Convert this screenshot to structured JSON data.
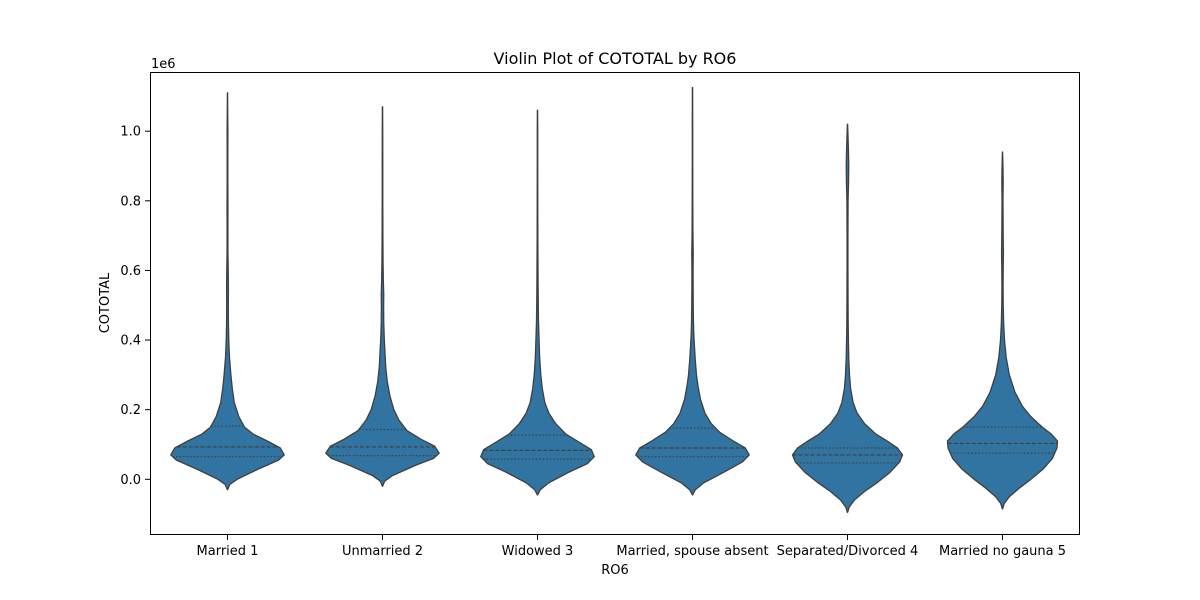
{
  "chart_data": {
    "type": "violin",
    "title": "Violin Plot of COTOTAL by RO6",
    "xlabel": "RO6",
    "ylabel": "COTOTAL",
    "y_offset_label": "1e6",
    "ylim": [
      -0.16,
      1.17
    ],
    "y_ticks": [
      0.0,
      0.2,
      0.4,
      0.6,
      0.8,
      1.0
    ],
    "y_tick_labels": [
      "0.0",
      "0.2",
      "0.4",
      "0.6",
      "0.8",
      "1.0"
    ],
    "grid": false,
    "fill_color": "#3274a1",
    "edge_color": "#3f3f3f",
    "categories": [
      "Married 1",
      "Unmarried 2",
      "Widowed 3",
      "Married, spouse absent",
      "Separated/Divorced 4",
      "Married no gauna 5"
    ],
    "series": [
      {
        "min": -0.03,
        "max": 1.11,
        "q1": 0.065,
        "median": 0.093,
        "q3": 0.153,
        "profile": [
          [
            -0.03,
            0.002
          ],
          [
            -0.015,
            0.04
          ],
          [
            0.0,
            0.17
          ],
          [
            0.03,
            0.55
          ],
          [
            0.055,
            0.9
          ],
          [
            0.07,
            1.0
          ],
          [
            0.09,
            0.93
          ],
          [
            0.11,
            0.7
          ],
          [
            0.13,
            0.45
          ],
          [
            0.15,
            0.3
          ],
          [
            0.18,
            0.2
          ],
          [
            0.22,
            0.12
          ],
          [
            0.26,
            0.085
          ],
          [
            0.3,
            0.06
          ],
          [
            0.35,
            0.035
          ],
          [
            0.4,
            0.022
          ],
          [
            0.45,
            0.016
          ],
          [
            0.5,
            0.014
          ],
          [
            0.55,
            0.016
          ],
          [
            0.6,
            0.013
          ],
          [
            0.65,
            0.008
          ],
          [
            0.7,
            0.007
          ],
          [
            0.78,
            0.008
          ],
          [
            0.85,
            0.006
          ],
          [
            0.95,
            0.006
          ],
          [
            1.0,
            0.007
          ],
          [
            1.05,
            0.004
          ],
          [
            1.11,
            0.002
          ]
        ]
      },
      {
        "min": -0.02,
        "max": 1.07,
        "q1": 0.068,
        "median": 0.093,
        "q3": 0.143,
        "profile": [
          [
            -0.02,
            0.002
          ],
          [
            -0.005,
            0.04
          ],
          [
            0.01,
            0.17
          ],
          [
            0.04,
            0.58
          ],
          [
            0.06,
            0.9
          ],
          [
            0.075,
            1.0
          ],
          [
            0.095,
            0.92
          ],
          [
            0.115,
            0.68
          ],
          [
            0.14,
            0.43
          ],
          [
            0.17,
            0.29
          ],
          [
            0.2,
            0.2
          ],
          [
            0.24,
            0.13
          ],
          [
            0.28,
            0.085
          ],
          [
            0.32,
            0.058
          ],
          [
            0.36,
            0.045
          ],
          [
            0.4,
            0.032
          ],
          [
            0.45,
            0.022
          ],
          [
            0.5,
            0.02
          ],
          [
            0.53,
            0.022
          ],
          [
            0.57,
            0.015
          ],
          [
            0.62,
            0.01
          ],
          [
            0.7,
            0.007
          ],
          [
            0.8,
            0.005
          ],
          [
            0.9,
            0.005
          ],
          [
            1.0,
            0.004
          ],
          [
            1.07,
            0.002
          ]
        ]
      },
      {
        "min": -0.045,
        "max": 1.06,
        "q1": 0.058,
        "median": 0.083,
        "q3": 0.127,
        "profile": [
          [
            -0.045,
            0.002
          ],
          [
            -0.03,
            0.05
          ],
          [
            -0.01,
            0.2
          ],
          [
            0.02,
            0.55
          ],
          [
            0.045,
            0.88
          ],
          [
            0.065,
            1.0
          ],
          [
            0.085,
            0.95
          ],
          [
            0.105,
            0.75
          ],
          [
            0.13,
            0.5
          ],
          [
            0.16,
            0.32
          ],
          [
            0.19,
            0.2
          ],
          [
            0.22,
            0.13
          ],
          [
            0.26,
            0.085
          ],
          [
            0.3,
            0.058
          ],
          [
            0.35,
            0.038
          ],
          [
            0.4,
            0.028
          ],
          [
            0.45,
            0.018
          ],
          [
            0.5,
            0.014
          ],
          [
            0.55,
            0.011
          ],
          [
            0.6,
            0.009
          ],
          [
            0.7,
            0.006
          ],
          [
            0.8,
            0.005
          ],
          [
            0.9,
            0.004
          ],
          [
            1.0,
            0.004
          ],
          [
            1.06,
            0.002
          ]
        ]
      },
      {
        "min": -0.045,
        "max": 1.125,
        "q1": 0.065,
        "median": 0.09,
        "q3": 0.147,
        "profile": [
          [
            -0.045,
            0.002
          ],
          [
            -0.03,
            0.05
          ],
          [
            -0.01,
            0.2
          ],
          [
            0.02,
            0.55
          ],
          [
            0.05,
            0.88
          ],
          [
            0.07,
            1.0
          ],
          [
            0.09,
            0.93
          ],
          [
            0.11,
            0.72
          ],
          [
            0.135,
            0.48
          ],
          [
            0.16,
            0.33
          ],
          [
            0.19,
            0.22
          ],
          [
            0.23,
            0.14
          ],
          [
            0.27,
            0.095
          ],
          [
            0.3,
            0.07
          ],
          [
            0.34,
            0.05
          ],
          [
            0.38,
            0.035
          ],
          [
            0.42,
            0.022
          ],
          [
            0.46,
            0.016
          ],
          [
            0.5,
            0.013
          ],
          [
            0.55,
            0.011
          ],
          [
            0.6,
            0.01
          ],
          [
            0.65,
            0.013
          ],
          [
            0.7,
            0.008
          ],
          [
            0.8,
            0.005
          ],
          [
            0.9,
            0.004
          ],
          [
            1.0,
            0.004
          ],
          [
            1.125,
            0.002
          ]
        ]
      },
      {
        "min": -0.095,
        "max": 1.02,
        "q1": 0.047,
        "median": 0.07,
        "q3": 0.09,
        "profile": [
          [
            -0.095,
            0.002
          ],
          [
            -0.08,
            0.03
          ],
          [
            -0.06,
            0.12
          ],
          [
            -0.035,
            0.3
          ],
          [
            -0.01,
            0.52
          ],
          [
            0.02,
            0.75
          ],
          [
            0.05,
            0.92
          ],
          [
            0.07,
            0.97
          ],
          [
            0.09,
            0.88
          ],
          [
            0.11,
            0.7
          ],
          [
            0.13,
            0.5
          ],
          [
            0.16,
            0.3
          ],
          [
            0.19,
            0.17
          ],
          [
            0.22,
            0.1
          ],
          [
            0.26,
            0.055
          ],
          [
            0.3,
            0.035
          ],
          [
            0.35,
            0.022
          ],
          [
            0.4,
            0.016
          ],
          [
            0.45,
            0.012
          ],
          [
            0.5,
            0.01
          ],
          [
            0.6,
            0.008
          ],
          [
            0.7,
            0.008
          ],
          [
            0.8,
            0.01
          ],
          [
            0.85,
            0.018
          ],
          [
            0.9,
            0.022
          ],
          [
            0.95,
            0.016
          ],
          [
            1.0,
            0.006
          ],
          [
            1.02,
            0.002
          ]
        ]
      },
      {
        "min": -0.085,
        "max": 0.94,
        "q1": 0.075,
        "median": 0.103,
        "q3": 0.15,
        "profile": [
          [
            -0.085,
            0.002
          ],
          [
            -0.07,
            0.03
          ],
          [
            -0.05,
            0.12
          ],
          [
            -0.025,
            0.3
          ],
          [
            0.0,
            0.5
          ],
          [
            0.03,
            0.72
          ],
          [
            0.06,
            0.88
          ],
          [
            0.09,
            0.96
          ],
          [
            0.11,
            0.97
          ],
          [
            0.13,
            0.86
          ],
          [
            0.15,
            0.7
          ],
          [
            0.18,
            0.5
          ],
          [
            0.21,
            0.35
          ],
          [
            0.25,
            0.22
          ],
          [
            0.3,
            0.12
          ],
          [
            0.35,
            0.065
          ],
          [
            0.4,
            0.035
          ],
          [
            0.45,
            0.02
          ],
          [
            0.5,
            0.013
          ],
          [
            0.55,
            0.01
          ],
          [
            0.6,
            0.012
          ],
          [
            0.65,
            0.016
          ],
          [
            0.7,
            0.012
          ],
          [
            0.8,
            0.008
          ],
          [
            0.85,
            0.012
          ],
          [
            0.9,
            0.008
          ],
          [
            0.94,
            0.002
          ]
        ]
      }
    ]
  }
}
